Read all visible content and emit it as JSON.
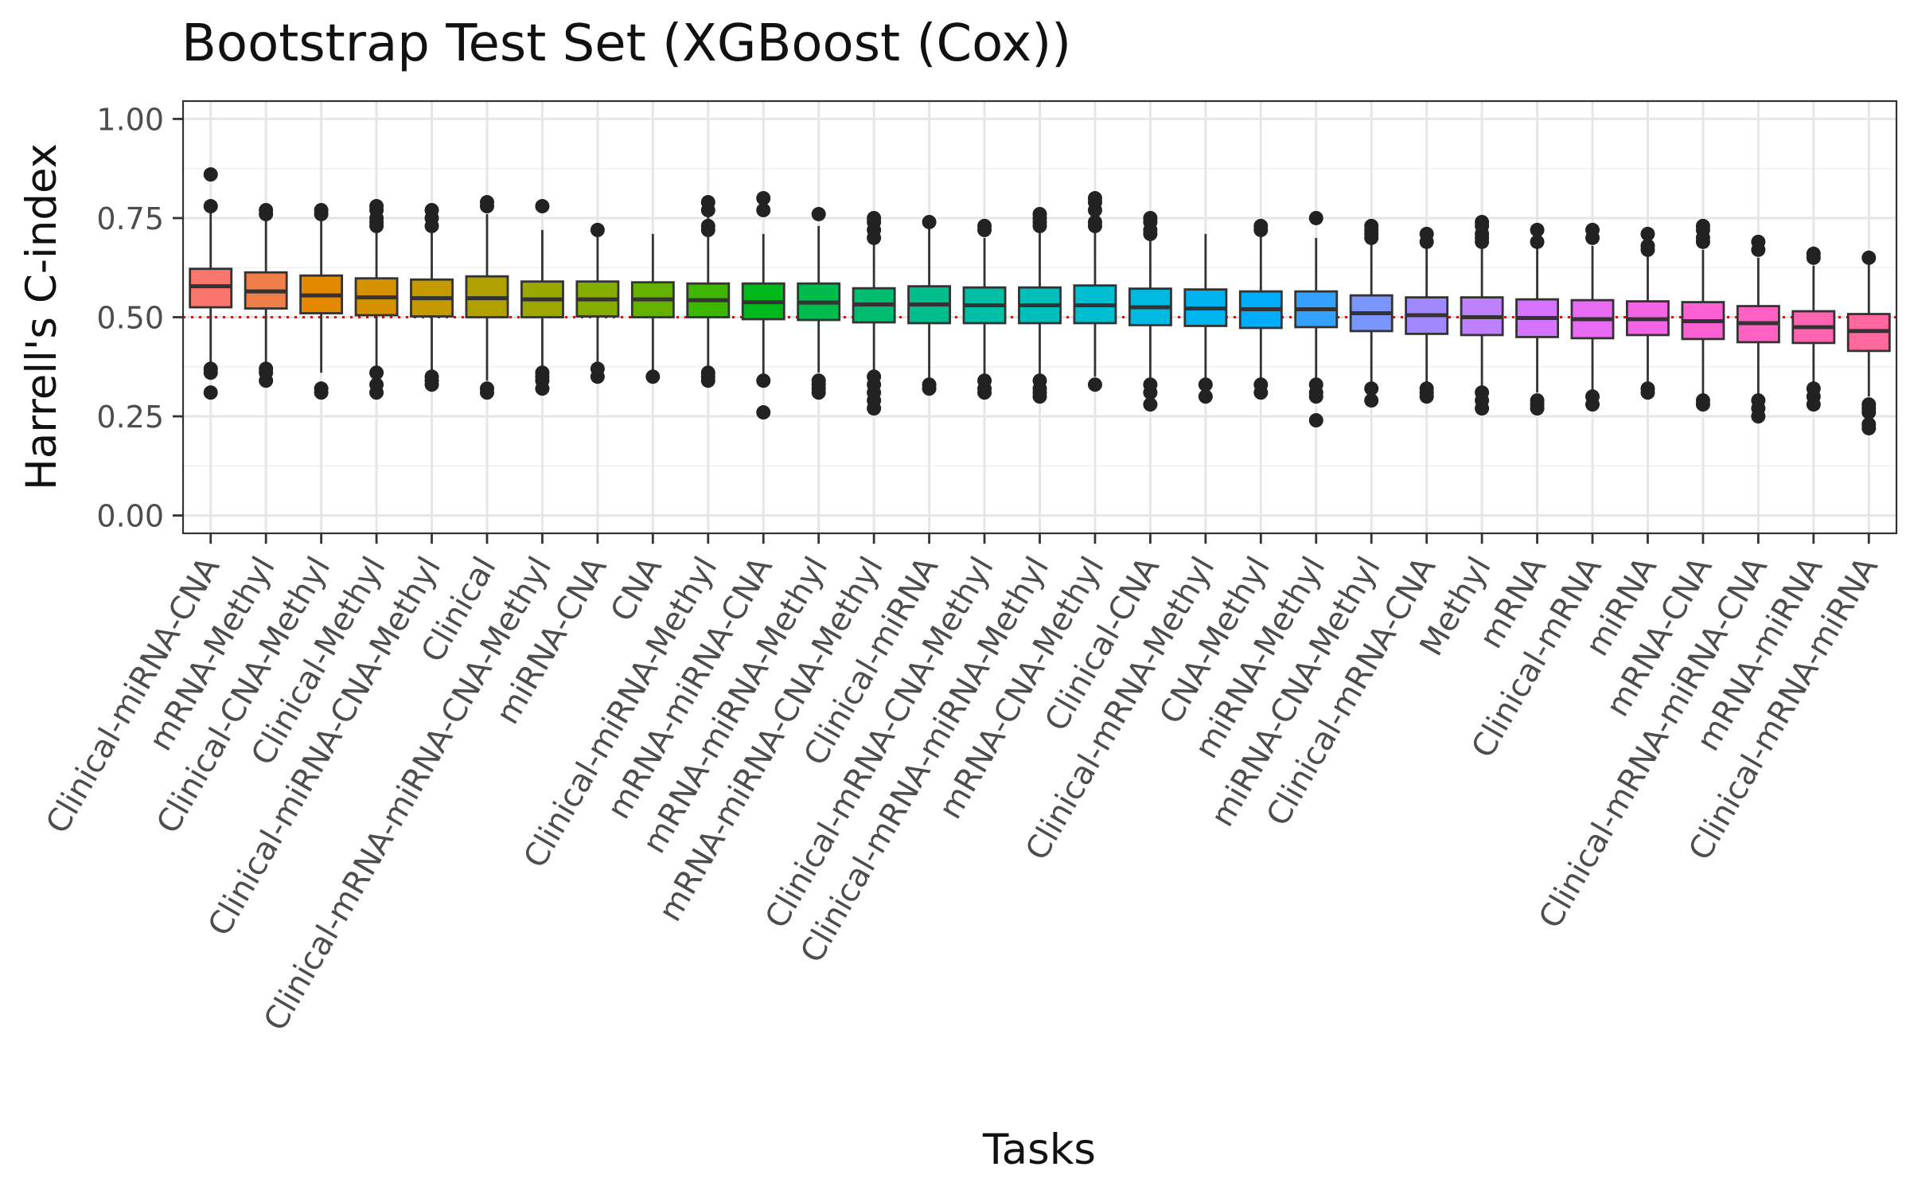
{
  "chart_data": {
    "type": "box",
    "title": "Bootstrap Test Set (XGBoost (Cox))",
    "xlabel": "Tasks",
    "ylabel": "Harrell's C-index",
    "ylim": [
      -0.045,
      1.045
    ],
    "yticks": [
      "0.00",
      "0.25",
      "0.50",
      "0.75",
      "1.00"
    ],
    "reference_line": {
      "y": 0.5,
      "color": "#ff0000",
      "style": "dotted"
    },
    "grid": true,
    "legend": "none",
    "series": [
      {
        "name": "Clinical-miRNA-CNA",
        "color": "#F8766D",
        "q1": 0.525,
        "median": 0.578,
        "q3": 0.622,
        "whisker_low": 0.38,
        "whisker_high": 0.77,
        "outliers": [
          0.86,
          0.78,
          0.37,
          0.36,
          0.31
        ]
      },
      {
        "name": "mRNA-Methyl",
        "color": "#EF7F4A",
        "q1": 0.522,
        "median": 0.565,
        "q3": 0.613,
        "whisker_low": 0.38,
        "whisker_high": 0.76,
        "outliers": [
          0.77,
          0.76,
          0.37,
          0.36,
          0.34
        ]
      },
      {
        "name": "Clinical-CNA-Methyl",
        "color": "#E38900",
        "q1": 0.51,
        "median": 0.555,
        "q3": 0.605,
        "whisker_low": 0.36,
        "whisker_high": 0.76,
        "outliers": [
          0.77,
          0.76,
          0.32,
          0.31
        ]
      },
      {
        "name": "Clinical-Methyl",
        "color": "#D49200",
        "q1": 0.505,
        "median": 0.55,
        "q3": 0.598,
        "whisker_low": 0.37,
        "whisker_high": 0.74,
        "outliers": [
          0.78,
          0.77,
          0.75,
          0.74,
          0.73,
          0.36,
          0.33,
          0.31
        ]
      },
      {
        "name": "Clinical-miRNA-CNA-Methyl",
        "color": "#C49A00",
        "q1": 0.502,
        "median": 0.548,
        "q3": 0.595,
        "whisker_low": 0.36,
        "whisker_high": 0.74,
        "outliers": [
          0.77,
          0.75,
          0.73,
          0.35,
          0.34,
          0.33
        ]
      },
      {
        "name": "Clinical",
        "color": "#B0A100",
        "q1": 0.5,
        "median": 0.548,
        "q3": 0.603,
        "whisker_low": 0.34,
        "whisker_high": 0.76,
        "outliers": [
          0.79,
          0.78,
          0.32,
          0.31
        ]
      },
      {
        "name": "Clinical-mRNA-miRNA-CNA-Methyl",
        "color": "#9CA700",
        "q1": 0.5,
        "median": 0.545,
        "q3": 0.59,
        "whisker_low": 0.37,
        "whisker_high": 0.72,
        "outliers": [
          0.78,
          0.36,
          0.35,
          0.34,
          0.32
        ]
      },
      {
        "name": "miRNA-CNA",
        "color": "#84AD00",
        "q1": 0.502,
        "median": 0.545,
        "q3": 0.59,
        "whisker_low": 0.38,
        "whisker_high": 0.71,
        "outliers": [
          0.72,
          0.37,
          0.35
        ]
      },
      {
        "name": "CNA",
        "color": "#66B100",
        "q1": 0.5,
        "median": 0.545,
        "q3": 0.588,
        "whisker_low": 0.36,
        "whisker_high": 0.71,
        "outliers": [
          0.35
        ]
      },
      {
        "name": "Clinical-miRNA-Methyl",
        "color": "#3EB500",
        "q1": 0.5,
        "median": 0.543,
        "q3": 0.585,
        "whisker_low": 0.37,
        "whisker_high": 0.76,
        "outliers": [
          0.79,
          0.77,
          0.73,
          0.72,
          0.36,
          0.35,
          0.34
        ]
      },
      {
        "name": "mRNA-miRNA-CNA",
        "color": "#00B81B",
        "q1": 0.495,
        "median": 0.538,
        "q3": 0.585,
        "whisker_low": 0.35,
        "whisker_high": 0.71,
        "outliers": [
          0.8,
          0.77,
          0.34,
          0.26
        ]
      },
      {
        "name": "mRNA-miRNA-Methyl",
        "color": "#00BB4E",
        "q1": 0.493,
        "median": 0.537,
        "q3": 0.585,
        "whisker_low": 0.36,
        "whisker_high": 0.73,
        "outliers": [
          0.76,
          0.34,
          0.33,
          0.32,
          0.31
        ]
      },
      {
        "name": "mRNA-miRNA-CNA-Methyl",
        "color": "#00BC70",
        "q1": 0.487,
        "median": 0.532,
        "q3": 0.573,
        "whisker_low": 0.36,
        "whisker_high": 0.69,
        "outliers": [
          0.75,
          0.74,
          0.72,
          0.7,
          0.35,
          0.33,
          0.31,
          0.29,
          0.27
        ]
      },
      {
        "name": "Clinical-miRNA",
        "color": "#00BE8C",
        "q1": 0.485,
        "median": 0.532,
        "q3": 0.578,
        "whisker_low": 0.34,
        "whisker_high": 0.73,
        "outliers": [
          0.74,
          0.33,
          0.32
        ]
      },
      {
        "name": "Clinical-mRNA-CNA-Methyl",
        "color": "#00BFA4",
        "q1": 0.485,
        "median": 0.53,
        "q3": 0.575,
        "whisker_low": 0.35,
        "whisker_high": 0.7,
        "outliers": [
          0.73,
          0.72,
          0.34,
          0.32,
          0.31
        ]
      },
      {
        "name": "Clinical-mRNA-miRNA-Methyl",
        "color": "#00BFBA",
        "q1": 0.485,
        "median": 0.53,
        "q3": 0.575,
        "whisker_low": 0.35,
        "whisker_high": 0.72,
        "outliers": [
          0.76,
          0.75,
          0.74,
          0.73,
          0.34,
          0.32,
          0.31,
          0.3
        ]
      },
      {
        "name": "mRNA-CNA-Methyl",
        "color": "#00BDCF",
        "q1": 0.485,
        "median": 0.53,
        "q3": 0.58,
        "whisker_low": 0.35,
        "whisker_high": 0.72,
        "outliers": [
          0.8,
          0.79,
          0.77,
          0.74,
          0.73,
          0.33
        ]
      },
      {
        "name": "Clinical-CNA",
        "color": "#00B9E1",
        "q1": 0.48,
        "median": 0.525,
        "q3": 0.572,
        "whisker_low": 0.34,
        "whisker_high": 0.71,
        "outliers": [
          0.75,
          0.74,
          0.72,
          0.71,
          0.33,
          0.31,
          0.28
        ]
      },
      {
        "name": "Clinical-mRNA-Methyl",
        "color": "#00B4F0",
        "q1": 0.478,
        "median": 0.522,
        "q3": 0.57,
        "whisker_low": 0.34,
        "whisker_high": 0.71,
        "outliers": [
          0.33,
          0.3
        ]
      },
      {
        "name": "CNA-Methyl",
        "color": "#00ADFA",
        "q1": 0.473,
        "median": 0.52,
        "q3": 0.565,
        "whisker_low": 0.34,
        "whisker_high": 0.71,
        "outliers": [
          0.73,
          0.72,
          0.33,
          0.31
        ]
      },
      {
        "name": "miRNA-Methyl",
        "color": "#35A2FF",
        "q1": 0.475,
        "median": 0.52,
        "q3": 0.565,
        "whisker_low": 0.34,
        "whisker_high": 0.7,
        "outliers": [
          0.75,
          0.33,
          0.31,
          0.3,
          0.24
        ]
      },
      {
        "name": "miRNA-CNA-Methyl",
        "color": "#7B96FF",
        "q1": 0.465,
        "median": 0.51,
        "q3": 0.555,
        "whisker_low": 0.33,
        "whisker_high": 0.69,
        "outliers": [
          0.73,
          0.72,
          0.71,
          0.7,
          0.32,
          0.29
        ]
      },
      {
        "name": "Clinical-mRNA-CNA",
        "color": "#A089FF",
        "q1": 0.458,
        "median": 0.505,
        "q3": 0.55,
        "whisker_low": 0.33,
        "whisker_high": 0.68,
        "outliers": [
          0.71,
          0.69,
          0.32,
          0.31,
          0.3
        ]
      },
      {
        "name": "Methyl",
        "color": "#BF80FF",
        "q1": 0.455,
        "median": 0.5,
        "q3": 0.55,
        "whisker_low": 0.32,
        "whisker_high": 0.68,
        "outliers": [
          0.74,
          0.73,
          0.71,
          0.7,
          0.69,
          0.31,
          0.29,
          0.27
        ]
      },
      {
        "name": "mRNA",
        "color": "#D774FF",
        "q1": 0.45,
        "median": 0.498,
        "q3": 0.545,
        "whisker_low": 0.31,
        "whisker_high": 0.68,
        "outliers": [
          0.72,
          0.69,
          0.29,
          0.28,
          0.27
        ]
      },
      {
        "name": "Clinical-mRNA",
        "color": "#E76BF3",
        "q1": 0.447,
        "median": 0.495,
        "q3": 0.543,
        "whisker_low": 0.31,
        "whisker_high": 0.68,
        "outliers": [
          0.72,
          0.7,
          0.3,
          0.28
        ]
      },
      {
        "name": "miRNA",
        "color": "#F465E3",
        "q1": 0.455,
        "median": 0.495,
        "q3": 0.54,
        "whisker_low": 0.33,
        "whisker_high": 0.66,
        "outliers": [
          0.71,
          0.68,
          0.67,
          0.32,
          0.31
        ]
      },
      {
        "name": "mRNA-CNA",
        "color": "#FC61D3",
        "q1": 0.445,
        "median": 0.49,
        "q3": 0.538,
        "whisker_low": 0.3,
        "whisker_high": 0.67,
        "outliers": [
          0.73,
          0.72,
          0.7,
          0.69,
          0.29,
          0.28
        ]
      },
      {
        "name": "Clinical-mRNA-miRNA-CNA",
        "color": "#FF61C2",
        "q1": 0.437,
        "median": 0.485,
        "q3": 0.528,
        "whisker_low": 0.3,
        "whisker_high": 0.65,
        "outliers": [
          0.69,
          0.67,
          0.29,
          0.27,
          0.25
        ]
      },
      {
        "name": "mRNA-miRNA",
        "color": "#FF64B0",
        "q1": 0.435,
        "median": 0.475,
        "q3": 0.515,
        "whisker_low": 0.33,
        "whisker_high": 0.63,
        "outliers": [
          0.66,
          0.65,
          0.32,
          0.3,
          0.28
        ]
      },
      {
        "name": "Clinical-mRNA-miRNA",
        "color": "#FF689D",
        "q1": 0.415,
        "median": 0.465,
        "q3": 0.508,
        "whisker_low": 0.3,
        "whisker_high": 0.64,
        "outliers": [
          0.65,
          0.28,
          0.27,
          0.26,
          0.23,
          0.22
        ]
      }
    ]
  }
}
